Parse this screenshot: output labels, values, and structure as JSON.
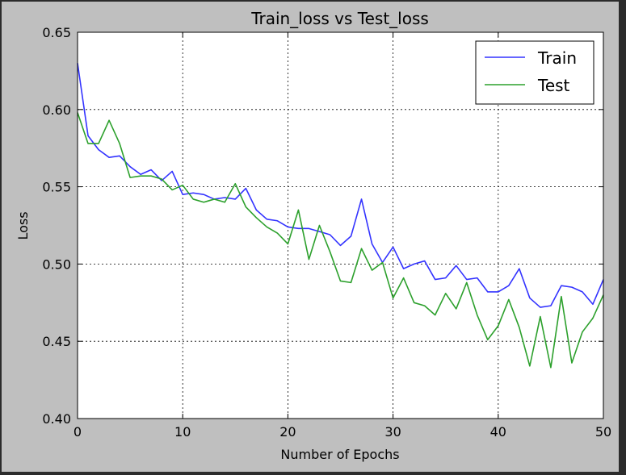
{
  "chart_data": {
    "type": "line",
    "title": "Train_loss vs Test_loss",
    "xlabel": "Number of Epochs",
    "ylabel": "Loss",
    "xlim": [
      0,
      50
    ],
    "ylim": [
      0.4,
      0.65
    ],
    "xticks": [
      0,
      10,
      20,
      30,
      40,
      50
    ],
    "yticks": [
      0.4,
      0.45,
      0.5,
      0.55,
      0.6,
      0.65
    ],
    "grid": true,
    "legend_position": "top-right",
    "x": [
      0,
      1,
      2,
      3,
      4,
      5,
      6,
      7,
      8,
      9,
      10,
      11,
      12,
      13,
      14,
      15,
      16,
      17,
      18,
      19,
      20,
      21,
      22,
      23,
      24,
      25,
      26,
      27,
      28,
      29,
      30,
      31,
      32,
      33,
      34,
      35,
      36,
      37,
      38,
      39,
      40,
      41,
      42,
      43,
      44,
      45,
      46,
      47,
      48,
      49,
      50
    ],
    "series": [
      {
        "name": "Train",
        "color": "#3333ff",
        "values": [
          0.63,
          0.583,
          0.574,
          0.569,
          0.57,
          0.563,
          0.558,
          0.561,
          0.554,
          0.56,
          0.545,
          0.546,
          0.545,
          0.542,
          0.543,
          0.542,
          0.549,
          0.535,
          0.529,
          0.528,
          0.524,
          0.523,
          0.523,
          0.521,
          0.519,
          0.512,
          0.518,
          0.542,
          0.513,
          0.501,
          0.511,
          0.497,
          0.5,
          0.502,
          0.49,
          0.491,
          0.499,
          0.49,
          0.491,
          0.482,
          0.482,
          0.486,
          0.497,
          0.478,
          0.472,
          0.473,
          0.486,
          0.485,
          0.482,
          0.474,
          0.49
        ]
      },
      {
        "name": "Test",
        "color": "#2ca02c",
        "values": [
          0.598,
          0.578,
          0.578,
          0.593,
          0.578,
          0.556,
          0.557,
          0.557,
          0.555,
          0.548,
          0.551,
          0.542,
          0.54,
          0.542,
          0.54,
          0.552,
          0.537,
          0.53,
          0.524,
          0.52,
          0.513,
          0.535,
          0.503,
          0.525,
          0.508,
          0.489,
          0.488,
          0.51,
          0.496,
          0.501,
          0.478,
          0.491,
          0.475,
          0.473,
          0.467,
          0.481,
          0.471,
          0.488,
          0.467,
          0.451,
          0.46,
          0.477,
          0.459,
          0.434,
          0.466,
          0.433,
          0.479,
          0.436,
          0.456,
          0.465,
          0.48
        ]
      }
    ]
  }
}
